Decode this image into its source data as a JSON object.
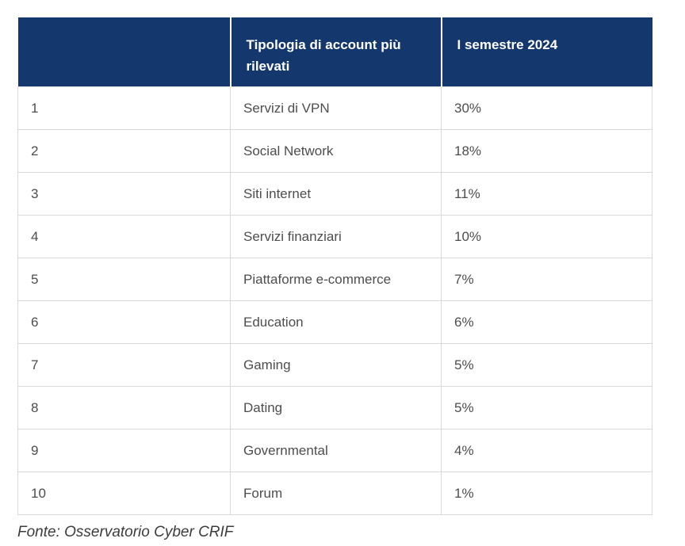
{
  "table": {
    "headers": {
      "rank": "",
      "type": "Tipologia di account più rilevati",
      "period": "I semestre 2024"
    },
    "rows": [
      {
        "rank": "1",
        "type": "Servizi di VPN",
        "value": "30%"
      },
      {
        "rank": "2",
        "type": "Social Network",
        "value": "18%"
      },
      {
        "rank": "3",
        "type": "Siti internet",
        "value": "11%"
      },
      {
        "rank": "4",
        "type": "Servizi finanziari",
        "value": "10%"
      },
      {
        "rank": "5",
        "type": "Piattaforme e-commerce",
        "value": "7%"
      },
      {
        "rank": "6",
        "type": "Education",
        "value": "6%"
      },
      {
        "rank": "7",
        "type": "Gaming",
        "value": "5%"
      },
      {
        "rank": "8",
        "type": "Dating",
        "value": "5%"
      },
      {
        "rank": "9",
        "type": "Governmental",
        "value": "4%"
      },
      {
        "rank": "10",
        "type": "Forum",
        "value": "1%"
      }
    ]
  },
  "footer": {
    "source": "Fonte: Osservatorio Cyber CRIF"
  },
  "colors": {
    "header_bg": "#14386d",
    "header_text": "#ffffff",
    "body_text": "#4d4d4f",
    "border": "#d9d9d9",
    "source_text": "#3c3c3f"
  },
  "chart_data": {
    "type": "table",
    "title": "",
    "columns": [
      "",
      "Tipologia di account più rilevati",
      "I semestre 2024"
    ],
    "categories": [
      "Servizi di VPN",
      "Social Network",
      "Siti internet",
      "Servizi finanziari",
      "Piattaforme e-commerce",
      "Education",
      "Gaming",
      "Dating",
      "Governmental",
      "Forum"
    ],
    "ranks": [
      1,
      2,
      3,
      4,
      5,
      6,
      7,
      8,
      9,
      10
    ],
    "values_percent": [
      30,
      18,
      11,
      10,
      7,
      6,
      5,
      5,
      4,
      1
    ],
    "legend_position": "none",
    "source": "Fonte: Osservatorio Cyber CRIF"
  }
}
